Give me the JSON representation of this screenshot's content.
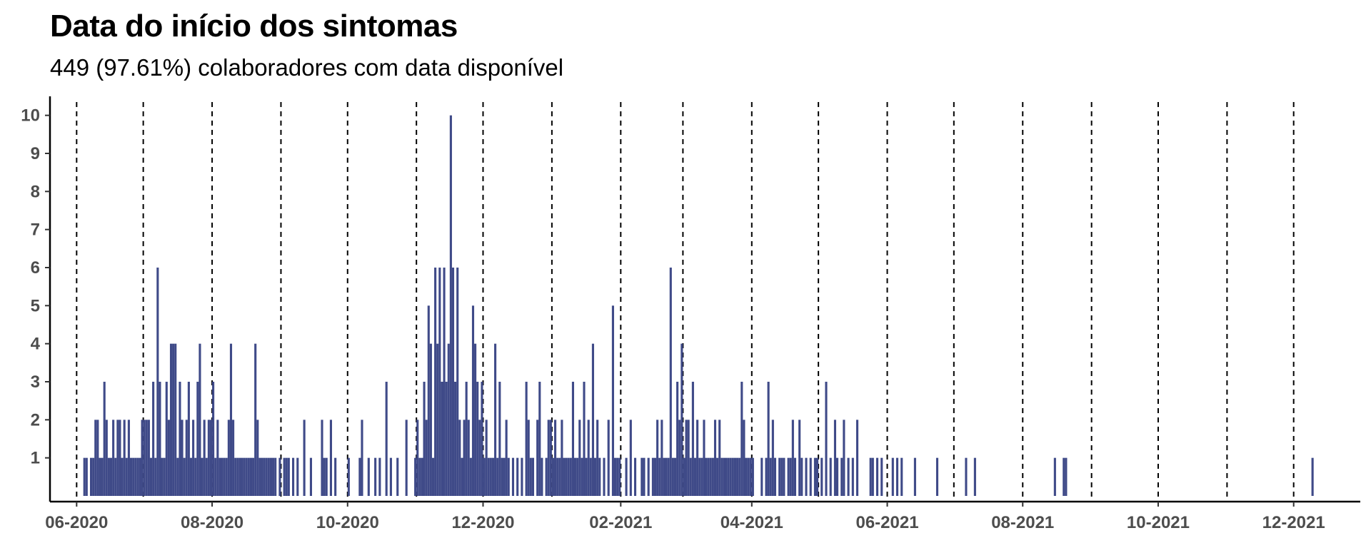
{
  "colors": {
    "bar": "#3F4A88",
    "axis": "#000000",
    "vline": "#000000",
    "tick_text": "#4d4d4d"
  },
  "chart_data": {
    "type": "bar",
    "title": "Data do início dos sintomas",
    "subtitle": "449 (97.61%) colaboradores com data disponível",
    "xlabel": "",
    "ylabel": "",
    "x_type": "date",
    "xlim": [
      "2020-05-20",
      "2021-12-31"
    ],
    "ylim": [
      0,
      10.5
    ],
    "y_ticks": [
      1,
      2,
      3,
      4,
      5,
      6,
      7,
      8,
      9,
      10
    ],
    "x_ticks": [
      {
        "date": "2020-06-01",
        "label": "06-2020"
      },
      {
        "date": "2020-08-01",
        "label": "08-2020"
      },
      {
        "date": "2020-10-01",
        "label": "10-2020"
      },
      {
        "date": "2020-12-01",
        "label": "12-2020"
      },
      {
        "date": "2021-02-01",
        "label": "02-2021"
      },
      {
        "date": "2021-04-01",
        "label": "04-2021"
      },
      {
        "date": "2021-06-01",
        "label": "06-2021"
      },
      {
        "date": "2021-08-01",
        "label": "08-2021"
      },
      {
        "date": "2021-10-01",
        "label": "10-2021"
      },
      {
        "date": "2021-12-01",
        "label": "12-2021"
      }
    ],
    "month_lines": [
      "2020-06-01",
      "2020-07-01",
      "2020-08-01",
      "2020-09-01",
      "2020-10-01",
      "2020-11-01",
      "2020-12-01",
      "2021-01-01",
      "2021-02-01",
      "2021-03-01",
      "2021-04-01",
      "2021-05-01",
      "2021-06-01",
      "2021-07-01",
      "2021-08-01",
      "2021-09-01",
      "2021-10-01",
      "2021-11-01",
      "2021-12-01",
      "2022-01-01"
    ],
    "grid": false,
    "legend": "none",
    "points": [
      [
        "2020-06-04",
        1
      ],
      [
        "2020-06-05",
        1
      ],
      [
        "2020-06-07",
        1
      ],
      [
        "2020-06-08",
        1
      ],
      [
        "2020-06-09",
        2
      ],
      [
        "2020-06-10",
        2
      ],
      [
        "2020-06-11",
        1
      ],
      [
        "2020-06-12",
        1
      ],
      [
        "2020-06-13",
        3
      ],
      [
        "2020-06-14",
        2
      ],
      [
        "2020-06-15",
        1
      ],
      [
        "2020-06-16",
        1
      ],
      [
        "2020-06-17",
        2
      ],
      [
        "2020-06-18",
        1
      ],
      [
        "2020-06-19",
        2
      ],
      [
        "2020-06-20",
        2
      ],
      [
        "2020-06-21",
        1
      ],
      [
        "2020-06-22",
        2
      ],
      [
        "2020-06-23",
        1
      ],
      [
        "2020-06-24",
        2
      ],
      [
        "2020-06-25",
        1
      ],
      [
        "2020-06-26",
        1
      ],
      [
        "2020-06-27",
        1
      ],
      [
        "2020-06-28",
        1
      ],
      [
        "2020-06-29",
        1
      ],
      [
        "2020-06-30",
        2
      ],
      [
        "2020-07-01",
        2
      ],
      [
        "2020-07-02",
        2
      ],
      [
        "2020-07-03",
        2
      ],
      [
        "2020-07-04",
        1
      ],
      [
        "2020-07-05",
        3
      ],
      [
        "2020-07-06",
        1
      ],
      [
        "2020-07-07",
        6
      ],
      [
        "2020-07-08",
        3
      ],
      [
        "2020-07-09",
        1
      ],
      [
        "2020-07-10",
        1
      ],
      [
        "2020-07-11",
        3
      ],
      [
        "2020-07-12",
        2
      ],
      [
        "2020-07-13",
        4
      ],
      [
        "2020-07-14",
        4
      ],
      [
        "2020-07-15",
        4
      ],
      [
        "2020-07-16",
        1
      ],
      [
        "2020-07-17",
        3
      ],
      [
        "2020-07-18",
        2
      ],
      [
        "2020-07-19",
        1
      ],
      [
        "2020-07-20",
        2
      ],
      [
        "2020-07-21",
        3
      ],
      [
        "2020-07-22",
        1
      ],
      [
        "2020-07-23",
        2
      ],
      [
        "2020-07-24",
        1
      ],
      [
        "2020-07-25",
        3
      ],
      [
        "2020-07-26",
        4
      ],
      [
        "2020-07-27",
        1
      ],
      [
        "2020-07-28",
        2
      ],
      [
        "2020-07-29",
        1
      ],
      [
        "2020-07-30",
        2
      ],
      [
        "2020-07-31",
        2
      ],
      [
        "2020-08-01",
        3
      ],
      [
        "2020-08-02",
        1
      ],
      [
        "2020-08-03",
        2
      ],
      [
        "2020-08-04",
        1
      ],
      [
        "2020-08-05",
        1
      ],
      [
        "2020-08-06",
        1
      ],
      [
        "2020-08-07",
        1
      ],
      [
        "2020-08-08",
        2
      ],
      [
        "2020-08-09",
        4
      ],
      [
        "2020-08-10",
        2
      ],
      [
        "2020-08-11",
        1
      ],
      [
        "2020-08-12",
        1
      ],
      [
        "2020-08-13",
        1
      ],
      [
        "2020-08-14",
        1
      ],
      [
        "2020-08-15",
        1
      ],
      [
        "2020-08-16",
        1
      ],
      [
        "2020-08-17",
        1
      ],
      [
        "2020-08-18",
        1
      ],
      [
        "2020-08-19",
        1
      ],
      [
        "2020-08-20",
        4
      ],
      [
        "2020-08-21",
        2
      ],
      [
        "2020-08-22",
        1
      ],
      [
        "2020-08-23",
        1
      ],
      [
        "2020-08-24",
        1
      ],
      [
        "2020-08-25",
        1
      ],
      [
        "2020-08-26",
        1
      ],
      [
        "2020-08-27",
        1
      ],
      [
        "2020-08-28",
        1
      ],
      [
        "2020-08-29",
        1
      ],
      [
        "2020-08-31",
        1
      ],
      [
        "2020-09-02",
        1
      ],
      [
        "2020-09-03",
        1
      ],
      [
        "2020-09-04",
        1
      ],
      [
        "2020-09-06",
        1
      ],
      [
        "2020-09-08",
        1
      ],
      [
        "2020-09-11",
        2
      ],
      [
        "2020-09-14",
        1
      ],
      [
        "2020-09-19",
        2
      ],
      [
        "2020-09-20",
        1
      ],
      [
        "2020-09-21",
        1
      ],
      [
        "2020-09-23",
        2
      ],
      [
        "2020-09-25",
        1
      ],
      [
        "2020-10-01",
        1
      ],
      [
        "2020-10-06",
        1
      ],
      [
        "2020-10-07",
        2
      ],
      [
        "2020-10-10",
        1
      ],
      [
        "2020-10-13",
        1
      ],
      [
        "2020-10-15",
        1
      ],
      [
        "2020-10-18",
        3
      ],
      [
        "2020-10-20",
        1
      ],
      [
        "2020-10-23",
        1
      ],
      [
        "2020-10-27",
        2
      ],
      [
        "2020-10-31",
        1
      ],
      [
        "2020-11-01",
        2
      ],
      [
        "2020-11-02",
        1
      ],
      [
        "2020-11-03",
        1
      ],
      [
        "2020-11-04",
        3
      ],
      [
        "2020-11-05",
        2
      ],
      [
        "2020-11-06",
        5
      ],
      [
        "2020-11-07",
        4
      ],
      [
        "2020-11-08",
        1
      ],
      [
        "2020-11-09",
        6
      ],
      [
        "2020-11-10",
        4
      ],
      [
        "2020-11-11",
        6
      ],
      [
        "2020-11-12",
        3
      ],
      [
        "2020-11-13",
        6
      ],
      [
        "2020-11-14",
        3
      ],
      [
        "2020-11-15",
        4
      ],
      [
        "2020-11-16",
        10
      ],
      [
        "2020-11-17",
        6
      ],
      [
        "2020-11-18",
        3
      ],
      [
        "2020-11-19",
        6
      ],
      [
        "2020-11-20",
        2
      ],
      [
        "2020-11-21",
        1
      ],
      [
        "2020-11-22",
        2
      ],
      [
        "2020-11-23",
        3
      ],
      [
        "2020-11-24",
        2
      ],
      [
        "2020-11-25",
        1
      ],
      [
        "2020-11-26",
        5
      ],
      [
        "2020-11-27",
        4
      ],
      [
        "2020-11-28",
        3
      ],
      [
        "2020-11-29",
        2
      ],
      [
        "2020-11-30",
        3
      ],
      [
        "2020-12-01",
        1
      ],
      [
        "2020-12-02",
        2
      ],
      [
        "2020-12-03",
        1
      ],
      [
        "2020-12-04",
        1
      ],
      [
        "2020-12-05",
        1
      ],
      [
        "2020-12-06",
        4
      ],
      [
        "2020-12-07",
        1
      ],
      [
        "2020-12-08",
        3
      ],
      [
        "2020-12-09",
        1
      ],
      [
        "2020-12-10",
        1
      ],
      [
        "2020-12-11",
        2
      ],
      [
        "2020-12-12",
        1
      ],
      [
        "2020-12-14",
        1
      ],
      [
        "2020-12-16",
        1
      ],
      [
        "2020-12-18",
        1
      ],
      [
        "2020-12-20",
        3
      ],
      [
        "2020-12-21",
        2
      ],
      [
        "2020-12-22",
        1
      ],
      [
        "2020-12-23",
        1
      ],
      [
        "2020-12-25",
        2
      ],
      [
        "2020-12-26",
        3
      ],
      [
        "2020-12-27",
        1
      ],
      [
        "2020-12-29",
        1
      ],
      [
        "2020-12-30",
        2
      ],
      [
        "2020-12-31",
        2
      ],
      [
        "2021-01-01",
        1
      ],
      [
        "2021-01-02",
        2
      ],
      [
        "2021-01-03",
        1
      ],
      [
        "2021-01-04",
        1
      ],
      [
        "2021-01-05",
        2
      ],
      [
        "2021-01-06",
        1
      ],
      [
        "2021-01-07",
        1
      ],
      [
        "2021-01-08",
        1
      ],
      [
        "2021-01-09",
        1
      ],
      [
        "2021-01-10",
        3
      ],
      [
        "2021-01-11",
        1
      ],
      [
        "2021-01-12",
        1
      ],
      [
        "2021-01-13",
        2
      ],
      [
        "2021-01-14",
        1
      ],
      [
        "2021-01-15",
        3
      ],
      [
        "2021-01-16",
        1
      ],
      [
        "2021-01-17",
        2
      ],
      [
        "2021-01-18",
        1
      ],
      [
        "2021-01-19",
        4
      ],
      [
        "2021-01-20",
        1
      ],
      [
        "2021-01-21",
        2
      ],
      [
        "2021-01-22",
        1
      ],
      [
        "2021-01-24",
        1
      ],
      [
        "2021-01-26",
        2
      ],
      [
        "2021-01-28",
        5
      ],
      [
        "2021-01-29",
        1
      ],
      [
        "2021-01-30",
        1
      ],
      [
        "2021-01-31",
        1
      ],
      [
        "2021-02-03",
        1
      ],
      [
        "2021-02-05",
        2
      ],
      [
        "2021-02-07",
        1
      ],
      [
        "2021-02-10",
        1
      ],
      [
        "2021-02-11",
        1
      ],
      [
        "2021-02-13",
        1
      ],
      [
        "2021-02-15",
        1
      ],
      [
        "2021-02-16",
        1
      ],
      [
        "2021-02-17",
        2
      ],
      [
        "2021-02-18",
        1
      ],
      [
        "2021-02-19",
        2
      ],
      [
        "2021-02-20",
        1
      ],
      [
        "2021-02-21",
        1
      ],
      [
        "2021-02-22",
        1
      ],
      [
        "2021-02-23",
        6
      ],
      [
        "2021-02-24",
        1
      ],
      [
        "2021-02-25",
        1
      ],
      [
        "2021-02-26",
        3
      ],
      [
        "2021-02-27",
        2
      ],
      [
        "2021-02-28",
        4
      ],
      [
        "2021-03-01",
        1
      ],
      [
        "2021-03-02",
        2
      ],
      [
        "2021-03-03",
        2
      ],
      [
        "2021-03-04",
        1
      ],
      [
        "2021-03-05",
        3
      ],
      [
        "2021-03-06",
        1
      ],
      [
        "2021-03-07",
        2
      ],
      [
        "2021-03-08",
        1
      ],
      [
        "2021-03-09",
        1
      ],
      [
        "2021-03-10",
        2
      ],
      [
        "2021-03-11",
        1
      ],
      [
        "2021-03-12",
        1
      ],
      [
        "2021-03-13",
        1
      ],
      [
        "2021-03-14",
        1
      ],
      [
        "2021-03-15",
        2
      ],
      [
        "2021-03-16",
        1
      ],
      [
        "2021-03-17",
        2
      ],
      [
        "2021-03-18",
        1
      ],
      [
        "2021-03-19",
        1
      ],
      [
        "2021-03-20",
        1
      ],
      [
        "2021-03-21",
        1
      ],
      [
        "2021-03-22",
        1
      ],
      [
        "2021-03-23",
        1
      ],
      [
        "2021-03-24",
        1
      ],
      [
        "2021-03-25",
        1
      ],
      [
        "2021-03-26",
        1
      ],
      [
        "2021-03-27",
        3
      ],
      [
        "2021-03-28",
        2
      ],
      [
        "2021-03-29",
        1
      ],
      [
        "2021-03-30",
        1
      ],
      [
        "2021-03-31",
        1
      ],
      [
        "2021-04-01",
        1
      ],
      [
        "2021-04-05",
        1
      ],
      [
        "2021-04-07",
        1
      ],
      [
        "2021-04-08",
        3
      ],
      [
        "2021-04-09",
        1
      ],
      [
        "2021-04-10",
        2
      ],
      [
        "2021-04-11",
        1
      ],
      [
        "2021-04-13",
        1
      ],
      [
        "2021-04-14",
        1
      ],
      [
        "2021-04-15",
        1
      ],
      [
        "2021-04-17",
        1
      ],
      [
        "2021-04-18",
        1
      ],
      [
        "2021-04-19",
        2
      ],
      [
        "2021-04-20",
        1
      ],
      [
        "2021-04-22",
        2
      ],
      [
        "2021-04-23",
        1
      ],
      [
        "2021-04-25",
        1
      ],
      [
        "2021-04-27",
        1
      ],
      [
        "2021-04-29",
        1
      ],
      [
        "2021-04-30",
        1
      ],
      [
        "2021-05-02",
        1
      ],
      [
        "2021-05-04",
        3
      ],
      [
        "2021-05-06",
        1
      ],
      [
        "2021-05-08",
        2
      ],
      [
        "2021-05-09",
        1
      ],
      [
        "2021-05-11",
        1
      ],
      [
        "2021-05-12",
        2
      ],
      [
        "2021-05-14",
        1
      ],
      [
        "2021-05-16",
        1
      ],
      [
        "2021-05-18",
        2
      ],
      [
        "2021-05-24",
        1
      ],
      [
        "2021-05-25",
        1
      ],
      [
        "2021-05-27",
        1
      ],
      [
        "2021-05-29",
        1
      ],
      [
        "2021-06-03",
        1
      ],
      [
        "2021-06-05",
        1
      ],
      [
        "2021-06-07",
        1
      ],
      [
        "2021-06-13",
        1
      ],
      [
        "2021-06-23",
        1
      ],
      [
        "2021-07-06",
        1
      ],
      [
        "2021-07-10",
        1
      ],
      [
        "2021-08-15",
        1
      ],
      [
        "2021-08-19",
        1
      ],
      [
        "2021-08-20",
        1
      ],
      [
        "2021-12-09",
        1
      ]
    ]
  }
}
